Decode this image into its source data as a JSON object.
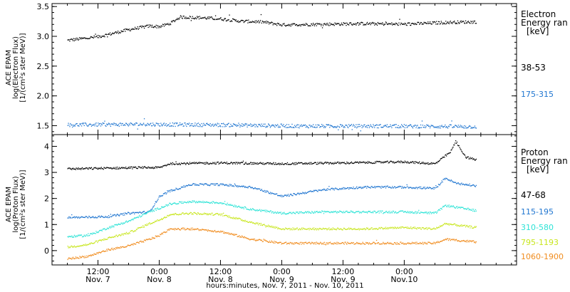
{
  "footer": {
    "xlabel": "hours:minutes, Nov. 7, 2011 - Nov. 10, 2011"
  },
  "chart_data": [
    {
      "type": "scatter",
      "panel": "electron",
      "ylabel_lines": [
        "ACE EPAM",
        "log(Electron Flux)",
        "[1/(cm²s ster MeV)]"
      ],
      "ylim": [
        1.35,
        3.55
      ],
      "yticks": [
        1.5,
        2.0,
        2.5,
        3.0,
        3.5
      ],
      "ytick_labels": [
        "1.5",
        "2.0",
        "2.5",
        "3.0",
        "3.5"
      ],
      "legend_title": [
        "Electron",
        "Energy ran",
        "[keV]"
      ],
      "x_unit": "hours since Nov. 7, 2011 00:00",
      "series": [
        {
          "name": "38-53",
          "color": "#000000",
          "x": [
            6,
            12,
            18,
            22,
            24,
            26,
            28,
            32,
            36,
            40,
            44,
            48,
            56,
            64,
            72,
            80,
            86
          ],
          "y": [
            2.94,
            3.0,
            3.12,
            3.18,
            3.17,
            3.22,
            3.33,
            3.32,
            3.3,
            3.26,
            3.25,
            3.2,
            3.21,
            3.22,
            3.21,
            3.24,
            3.25
          ]
        },
        {
          "name": "175-315",
          "color": "#1f75d0",
          "x": [
            6,
            20,
            36,
            52,
            68,
            86
          ],
          "y": [
            1.52,
            1.53,
            1.52,
            1.5,
            1.5,
            1.49
          ]
        }
      ]
    },
    {
      "type": "scatter",
      "panel": "proton",
      "ylabel_lines": [
        "ACE EPAM",
        "log(Proton Flux)",
        "[1/(cm²s ster MeV)]"
      ],
      "ylim": [
        -0.55,
        4.45
      ],
      "yticks": [
        0,
        1,
        2,
        3,
        4
      ],
      "ytick_labels": [
        "0",
        "1",
        "2",
        "3",
        "4"
      ],
      "legend_title": [
        "Proton",
        "Energy ran",
        "[keV]"
      ],
      "x_unit": "hours since Nov. 7, 2011 00:00",
      "series": [
        {
          "name": "47-68",
          "color": "#000000",
          "x": [
            6,
            20,
            24,
            26,
            36,
            48,
            60,
            72,
            78,
            81,
            82,
            84,
            86
          ],
          "y": [
            3.15,
            3.2,
            3.2,
            3.35,
            3.38,
            3.35,
            3.38,
            3.42,
            3.35,
            3.8,
            4.2,
            3.6,
            3.5
          ]
        },
        {
          "name": "115-195",
          "color": "#1f75d0",
          "x": [
            6,
            14,
            18,
            22,
            24,
            26,
            30,
            36,
            42,
            48,
            56,
            64,
            72,
            78,
            80,
            82,
            86
          ],
          "y": [
            1.28,
            1.32,
            1.45,
            1.5,
            2.1,
            2.3,
            2.55,
            2.55,
            2.45,
            2.1,
            2.35,
            2.45,
            2.45,
            2.4,
            2.8,
            2.6,
            2.5
          ]
        },
        {
          "name": "310-580",
          "color": "#2de3d6",
          "x": [
            6,
            10,
            14,
            18,
            22,
            24,
            26,
            30,
            36,
            42,
            48,
            56,
            64,
            72,
            78,
            80,
            86
          ],
          "y": [
            0.55,
            0.6,
            0.9,
            1.15,
            1.5,
            1.65,
            1.8,
            1.9,
            1.85,
            1.6,
            1.45,
            1.5,
            1.5,
            1.5,
            1.45,
            1.75,
            1.55
          ]
        },
        {
          "name": "795-1193",
          "color": "#c8e61e",
          "x": [
            6,
            10,
            14,
            18,
            22,
            24,
            26,
            30,
            36,
            42,
            48,
            56,
            64,
            72,
            78,
            80,
            86
          ],
          "y": [
            0.15,
            0.25,
            0.5,
            0.7,
            1.05,
            1.2,
            1.4,
            1.45,
            1.4,
            1.1,
            0.85,
            0.85,
            0.85,
            0.9,
            0.85,
            1.05,
            0.9
          ]
        },
        {
          "name": "1060-1900",
          "color": "#f08c1e",
          "x": [
            6,
            10,
            14,
            18,
            22,
            24,
            26,
            30,
            36,
            42,
            48,
            56,
            64,
            72,
            78,
            80,
            86
          ],
          "y": [
            -0.3,
            -0.2,
            0.05,
            0.2,
            0.45,
            0.6,
            0.85,
            0.85,
            0.75,
            0.45,
            0.3,
            0.3,
            0.3,
            0.3,
            0.3,
            0.45,
            0.35
          ]
        }
      ]
    }
  ],
  "x_axis": {
    "range_hours": [
      3,
      94
    ],
    "major_ticks": [
      12,
      24,
      36,
      48,
      60,
      72
    ],
    "tick_labels": [
      {
        "at": 12,
        "time": "12:00",
        "date": "Nov. 7"
      },
      {
        "at": 24,
        "time": "0:00",
        "date": "Nov. 8"
      },
      {
        "at": 36,
        "time": "12:00",
        "date": "Nov. 8"
      },
      {
        "at": 48,
        "time": "0:00",
        "date": "Nov. 9"
      },
      {
        "at": 60,
        "time": "12:00",
        "date": "Nov. 9"
      },
      {
        "at": 72,
        "time": "0:00",
        "date": "Nov.10"
      }
    ]
  }
}
